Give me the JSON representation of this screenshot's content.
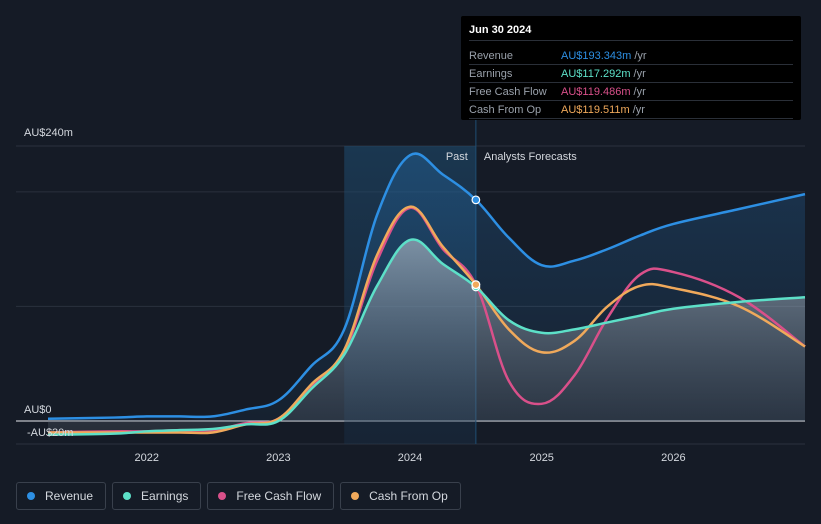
{
  "tooltip": {
    "date": "Jun 30 2024",
    "rows": [
      {
        "label": "Revenue",
        "value": "AU$193.343m",
        "unit": "/yr",
        "color": "#2d8fe3"
      },
      {
        "label": "Earnings",
        "value": "AU$117.292m",
        "unit": "/yr",
        "color": "#5de0c8"
      },
      {
        "label": "Free Cash Flow",
        "value": "AU$119.486m",
        "unit": "/yr",
        "color": "#d9508a"
      },
      {
        "label": "Cash From Op",
        "value": "AU$119.511m",
        "unit": "/yr",
        "color": "#f0a95b"
      }
    ]
  },
  "labels": {
    "past": "Past",
    "forecast": "Analysts Forecasts"
  },
  "chart_data": {
    "type": "line",
    "y_tick_labels": [
      "AU$240m",
      "AU$0",
      "-AU$20m"
    ],
    "x_tick_labels": [
      "2022",
      "2023",
      "2024",
      "2025",
      "2026"
    ],
    "ylim": [
      -20,
      240
    ],
    "highlight_x": 2024.5,
    "past_region": [
      2023.5,
      2024.5
    ],
    "series": [
      {
        "name": "Revenue",
        "color": "#2d8fe3",
        "x": [
          2021.25,
          2021.75,
          2022.0,
          2022.25,
          2022.5,
          2022.75,
          2023.0,
          2023.25,
          2023.5,
          2023.75,
          2024.0,
          2024.25,
          2024.5,
          2024.75,
          2025.0,
          2025.25,
          2025.5,
          2025.75,
          2026.0,
          2026.5,
          2027.0
        ],
        "y": [
          2,
          3,
          4,
          4,
          4,
          10,
          18,
          48,
          80,
          180,
          232,
          215,
          193,
          160,
          136,
          140,
          150,
          162,
          172,
          185,
          198
        ]
      },
      {
        "name": "Earnings",
        "color": "#5de0c8",
        "x": [
          2021.25,
          2021.75,
          2022.0,
          2022.25,
          2022.5,
          2022.75,
          2023.0,
          2023.25,
          2023.5,
          2023.75,
          2024.0,
          2024.25,
          2024.5,
          2024.75,
          2025.0,
          2025.25,
          2025.5,
          2025.75,
          2026.0,
          2026.5,
          2027.0
        ],
        "y": [
          -12,
          -11,
          -9,
          -8,
          -7,
          -3,
          0,
          28,
          58,
          118,
          158,
          137,
          117,
          88,
          77,
          80,
          86,
          92,
          98,
          104,
          108
        ]
      },
      {
        "name": "Free Cash Flow",
        "color": "#d9508a",
        "x": [
          2021.25,
          2021.75,
          2022.0,
          2022.25,
          2022.5,
          2022.75,
          2023.0,
          2023.25,
          2023.5,
          2023.75,
          2024.0,
          2024.25,
          2024.5,
          2024.75,
          2025.0,
          2025.25,
          2025.5,
          2025.75,
          2026.0,
          2026.5,
          2027.0
        ],
        "y": [
          -10,
          -9,
          -9,
          -8,
          -8,
          -2,
          2,
          30,
          60,
          140,
          186,
          150,
          119,
          35,
          15,
          40,
          90,
          128,
          130,
          108,
          65
        ]
      },
      {
        "name": "Cash From Op",
        "color": "#f0a95b",
        "x": [
          2021.25,
          2021.75,
          2022.0,
          2022.25,
          2022.5,
          2022.75,
          2023.0,
          2023.25,
          2023.5,
          2023.75,
          2024.0,
          2024.25,
          2024.5,
          2024.75,
          2025.0,
          2025.25,
          2025.5,
          2025.75,
          2026.0,
          2026.5,
          2027.0
        ],
        "y": [
          -10,
          -10,
          -10,
          -10,
          -10,
          -3,
          2,
          32,
          62,
          145,
          187,
          152,
          119,
          80,
          60,
          70,
          100,
          118,
          116,
          100,
          65
        ]
      }
    ]
  },
  "legend": [
    {
      "label": "Revenue",
      "color": "#2d8fe3"
    },
    {
      "label": "Earnings",
      "color": "#5de0c8"
    },
    {
      "label": "Free Cash Flow",
      "color": "#d9508a"
    },
    {
      "label": "Cash From Op",
      "color": "#f0a95b"
    }
  ]
}
